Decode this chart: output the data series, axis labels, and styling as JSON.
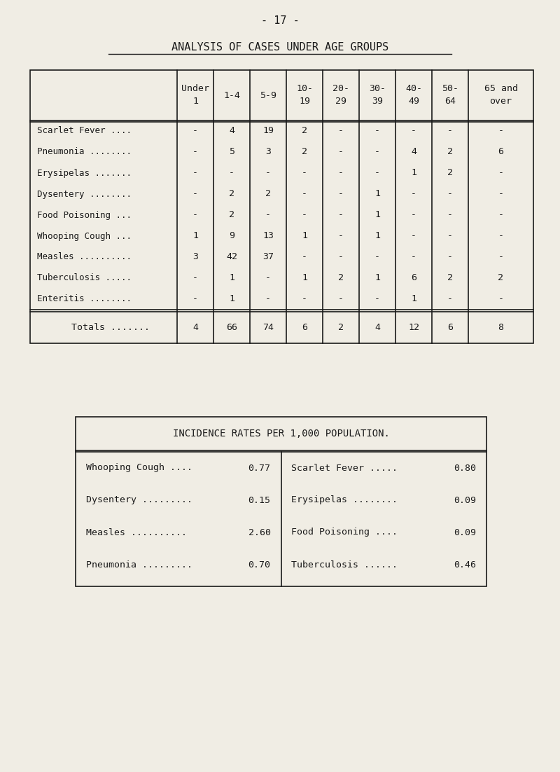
{
  "page_number": "- 17 -",
  "title": "ANALYSIS OF CASES UNDER AGE GROUPS",
  "background_color": "#f0ede4",
  "text_color": "#1a1a1a",
  "table1": {
    "columns": [
      "Under\n1",
      "1-4",
      "5-9",
      "10-\n19",
      "20-\n29",
      "30-\n39",
      "40-\n49",
      "50-\n64",
      "65 and\nover"
    ],
    "rows": [
      {
        "name": "Scarlet Fever ....",
        "values": [
          "-",
          "4",
          "19",
          "2",
          "-",
          "-",
          "-",
          "-",
          "-"
        ]
      },
      {
        "name": "Pneumonia ........",
        "values": [
          "-",
          "5",
          "3",
          "2",
          "-",
          "-",
          "4",
          "2",
          "6"
        ]
      },
      {
        "name": "Erysipelas .......",
        "values": [
          "-",
          "-",
          "-",
          "-",
          "-",
          "-",
          "1",
          "2",
          "-"
        ]
      },
      {
        "name": "Dysentery ........",
        "values": [
          "-",
          "2",
          "2",
          "-",
          "-",
          "1",
          "-",
          "-",
          "-"
        ]
      },
      {
        "name": "Food Poisoning ...",
        "values": [
          "-",
          "2",
          "-",
          "-",
          "-",
          "1",
          "-",
          "-",
          "-"
        ]
      },
      {
        "name": "Whooping Cough ...",
        "values": [
          "1",
          "9",
          "13",
          "1",
          "-",
          "1",
          "-",
          "-",
          "-"
        ]
      },
      {
        "name": "Measles ..........",
        "values": [
          "3",
          "42",
          "37",
          "-",
          "-",
          "-",
          "-",
          "-",
          "-"
        ]
      },
      {
        "name": "Tuberculosis .....",
        "values": [
          "-",
          "1",
          "-",
          "1",
          "2",
          "1",
          "6",
          "2",
          "2"
        ]
      },
      {
        "name": "Enteritis ........",
        "values": [
          "-",
          "1",
          "-",
          "-",
          "-",
          "-",
          "1",
          "-",
          "-"
        ]
      }
    ],
    "totals_name": "Totals .......",
    "totals_values": [
      "4",
      "66",
      "74",
      "6",
      "2",
      "4",
      "12",
      "6",
      "8"
    ]
  },
  "table2": {
    "title": "INCIDENCE RATES PER 1,000 POPULATION.",
    "left_col": [
      {
        "name": "Whooping Cough ....",
        "value": "0.77"
      },
      {
        "name": "Dysentery .........",
        "value": "0.15"
      },
      {
        "name": "Measles ..........",
        "value": "2.60"
      },
      {
        "name": "Pneumonia .........",
        "value": "0.70"
      }
    ],
    "right_col": [
      {
        "name": "Scarlet Fever .....",
        "value": "0.80"
      },
      {
        "name": "Erysipelas ........",
        "value": "0.09"
      },
      {
        "name": "Food Poisoning ....",
        "value": "0.09"
      },
      {
        "name": "Tuberculosis ......",
        "value": "0.46"
      }
    ]
  }
}
